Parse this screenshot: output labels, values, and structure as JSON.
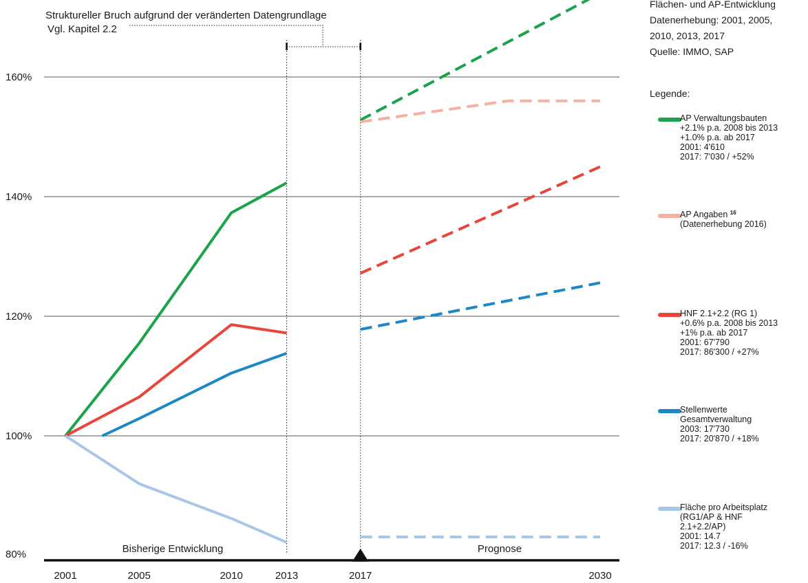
{
  "meta": {
    "lines": [
      "Flächen- und AP-Entwicklung",
      "Datenerhebung: 2001, 2005,",
      "2010, 2013, 2017",
      "Quelle: IMMO, SAP"
    ]
  },
  "legend": {
    "heading": "Legende:",
    "entries": [
      {
        "color": "#1aa34a",
        "lines": [
          "AP Verwaltungsbauten",
          "+2.1% p.a. 2008 bis 2013",
          "+1.0% p.a. ab 2017",
          "2001: 4'610",
          "2017: 7'030 / +52%"
        ]
      },
      {
        "color": "#f4b1a0",
        "label": "AP Angaben",
        "footnote": "16",
        "lines": [
          "(Datenerhebung 2016)"
        ]
      },
      {
        "color": "#e8453c",
        "lines": [
          "HNF 2.1+2.2 (RG 1)",
          "+0.6% p.a. 2008 bis 2013",
          "+1% p.a. ab 2017",
          "2001: 67'790",
          "2017: 86'300 / +27%"
        ]
      },
      {
        "color": "#1d87c8",
        "lines": [
          "Stellenwerte",
          "Gesamtverwaltung",
          "2003: 17'730",
          "2017: 20'870 / +18%"
        ]
      },
      {
        "color": "#a8c6e8",
        "lines": [
          "Fläche pro Arbeitsplatz",
          "(RG1/AP & HNF",
          "2.1+2.2/AP)",
          "2001: 14.7",
          "2017: 12.3 / -16%"
        ]
      }
    ]
  },
  "chart_data": {
    "type": "line",
    "annotation": {
      "lines": [
        "Struktureller Bruch aufgrund der veränderten Datengrundlage",
        "Vgl. Kapitel 2.2"
      ]
    },
    "sections": {
      "left": "Bisherige Entwicklung",
      "right": "Prognose"
    },
    "x_ticks": [
      {
        "value": 2001,
        "label": "2001"
      },
      {
        "value": 2005,
        "label": "2005"
      },
      {
        "value": 2010,
        "label": "2010"
      },
      {
        "value": 2013,
        "label": "2013"
      },
      {
        "value": 2017,
        "label": "2017"
      },
      {
        "value": 2030,
        "label": "2030"
      }
    ],
    "y_ticks": [
      {
        "value": 80,
        "label": "80%"
      },
      {
        "value": 100,
        "label": "100%"
      },
      {
        "value": 120,
        "label": "120%"
      },
      {
        "value": 140,
        "label": "140%"
      },
      {
        "value": 160,
        "label": "160%"
      }
    ],
    "xlim": [
      2001,
      2030
    ],
    "ylim": [
      80,
      160
    ],
    "grid": true,
    "break_years": [
      2013,
      2017
    ],
    "series": [
      {
        "name": "AP Verwaltungsbauten",
        "color": "#1aa34a",
        "style": "solid",
        "points": [
          [
            2001,
            100
          ],
          [
            2005,
            115.5
          ],
          [
            2010,
            137.3
          ],
          [
            2013,
            142.3
          ]
        ]
      },
      {
        "name": "AP Verwaltungsbauten",
        "color": "#1aa34a",
        "style": "dashed",
        "points": [
          [
            2017,
            152.8
          ],
          [
            2030,
            174
          ]
        ]
      },
      {
        "name": "AP Angaben",
        "color": "#f4b1a0",
        "style": "dashed",
        "points": [
          [
            2017,
            152.5
          ],
          [
            2025,
            156
          ],
          [
            2030,
            156
          ]
        ]
      },
      {
        "name": "HNF 2.1+2.2 (RG 1)",
        "color": "#e8453c",
        "style": "solid",
        "points": [
          [
            2001,
            100
          ],
          [
            2005,
            106.5
          ],
          [
            2010,
            118.6
          ],
          [
            2013,
            117.2
          ]
        ]
      },
      {
        "name": "HNF 2.1+2.2 (RG 1)",
        "color": "#e8453c",
        "style": "dashed",
        "points": [
          [
            2017,
            127.2
          ],
          [
            2030,
            145
          ]
        ]
      },
      {
        "name": "Stellenwerte Gesamtverwaltung",
        "color": "#1d87c8",
        "style": "solid",
        "points": [
          [
            2003,
            100
          ],
          [
            2005,
            102.9
          ],
          [
            2010,
            110.5
          ],
          [
            2013,
            113.8
          ]
        ]
      },
      {
        "name": "Stellenwerte Gesamtverwaltung",
        "color": "#1d87c8",
        "style": "dashed",
        "points": [
          [
            2017,
            117.8
          ],
          [
            2030,
            125.6
          ]
        ]
      },
      {
        "name": "Fläche pro Arbeitsplatz",
        "color": "#a8c6e8",
        "style": "solid",
        "points": [
          [
            2001,
            100
          ],
          [
            2005,
            92
          ],
          [
            2010,
            86.2
          ],
          [
            2013,
            82.2
          ]
        ]
      },
      {
        "name": "Fläche pro Arbeitsplatz",
        "color": "#a8c6e8",
        "style": "dashed",
        "points": [
          [
            2017,
            83.1
          ],
          [
            2030,
            83.1
          ]
        ]
      }
    ]
  }
}
